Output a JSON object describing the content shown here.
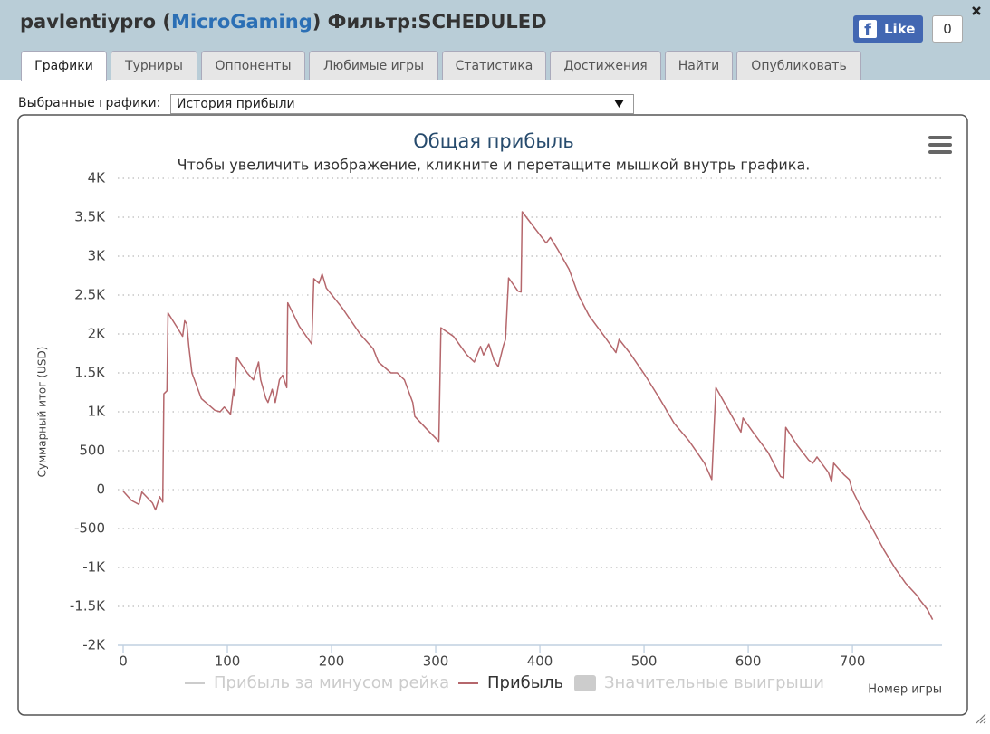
{
  "header": {
    "title_prefix": "pavlentiypro (",
    "network": "MicroGaming",
    "title_suffix": ") Фильтр:SCHEDULED",
    "like_label": "Like",
    "like_count": 0
  },
  "tabs": [
    "Графики",
    "Турниры",
    "Оппоненты",
    "Любимые игры",
    "Статистика",
    "Достижения",
    "Найти",
    "Опубликовать"
  ],
  "selector": {
    "label": "Выбранные графики:",
    "value": "История прибыли"
  },
  "chart_data": {
    "type": "line",
    "title": "Общая прибыль",
    "subtitle": "Чтобы увеличить изображение, кликните и перетащите мышкой внутрь графика.",
    "x_label": "Номер игры",
    "y_label": "Суммарный итог (USD)",
    "xlim": [
      0,
      786
    ],
    "ylim": [
      -2000,
      4000
    ],
    "xticks": [
      0,
      100,
      200,
      300,
      400,
      500,
      600,
      700
    ],
    "yticks": [
      {
        "value": 4000,
        "label": "4K"
      },
      {
        "value": 3500,
        "label": "3.5K"
      },
      {
        "value": 3000,
        "label": "3K"
      },
      {
        "value": 2500,
        "label": "2.5K"
      },
      {
        "value": 2000,
        "label": "2K"
      },
      {
        "value": 1500,
        "label": "1.5K"
      },
      {
        "value": 1000,
        "label": "1K"
      },
      500,
      0,
      -500,
      {
        "value": -1000,
        "label": "-1K"
      },
      {
        "value": -1500,
        "label": "-1.5K"
      },
      {
        "value": -2000,
        "label": "-2K"
      }
    ],
    "grid": true,
    "x": [
      0,
      8,
      15,
      18,
      28,
      31,
      35,
      38,
      39,
      42,
      43,
      52,
      57,
      59,
      61,
      63,
      66,
      75,
      88,
      93,
      97,
      103,
      106,
      107,
      109,
      119,
      125,
      130,
      132,
      137,
      139,
      143,
      146,
      150,
      153,
      157,
      158,
      169,
      181,
      183,
      188,
      191,
      195,
      210,
      228,
      240,
      245,
      257,
      263,
      270,
      278,
      280,
      292,
      303,
      305,
      317,
      330,
      337,
      343,
      346,
      351,
      356,
      360,
      365,
      367,
      370,
      379,
      382,
      383,
      395,
      406,
      410,
      417,
      428,
      437,
      447,
      463,
      473,
      476,
      486,
      501,
      515,
      529,
      543,
      558,
      565,
      569,
      582,
      593,
      595,
      605,
      619,
      631,
      634,
      636,
      647,
      658,
      662,
      666,
      677,
      680,
      682,
      692,
      697,
      700,
      710,
      720,
      730,
      741,
      751,
      762,
      765,
      772,
      777
    ],
    "series": [
      {
        "name": "Прибыль за минусом рейка",
        "color": "#cccccc",
        "symbol": "line",
        "visible": false
      },
      {
        "name": "Прибыль",
        "color": "#b5676c",
        "symbol": "line",
        "visible": true,
        "values": [
          -20,
          -140,
          -190,
          -30,
          -170,
          -260,
          -90,
          -160,
          1230,
          1270,
          2270,
          2080,
          1970,
          2170,
          2130,
          1840,
          1500,
          1170,
          1020,
          1000,
          1060,
          970,
          1290,
          1200,
          1700,
          1500,
          1410,
          1640,
          1410,
          1170,
          1120,
          1290,
          1120,
          1410,
          1470,
          1310,
          2400,
          2100,
          1870,
          2710,
          2650,
          2770,
          2590,
          2340,
          1990,
          1810,
          1640,
          1500,
          1500,
          1410,
          1120,
          940,
          770,
          620,
          2080,
          1970,
          1730,
          1640,
          1840,
          1730,
          1870,
          1660,
          1580,
          1850,
          1930,
          2720,
          2550,
          2540,
          3570,
          3360,
          3170,
          3240,
          3090,
          2830,
          2500,
          2240,
          1950,
          1760,
          1930,
          1760,
          1470,
          1170,
          850,
          630,
          340,
          130,
          1310,
          1000,
          740,
          920,
          730,
          480,
          170,
          150,
          800,
          570,
          380,
          340,
          420,
          220,
          100,
          340,
          190,
          130,
          -10,
          -280,
          -520,
          -770,
          -1010,
          -1200,
          -1360,
          -1420,
          -1540,
          -1670
        ]
      },
      {
        "name": "Значительные выигрыши",
        "color": "#cccccc",
        "symbol": "box",
        "visible": false
      }
    ]
  }
}
